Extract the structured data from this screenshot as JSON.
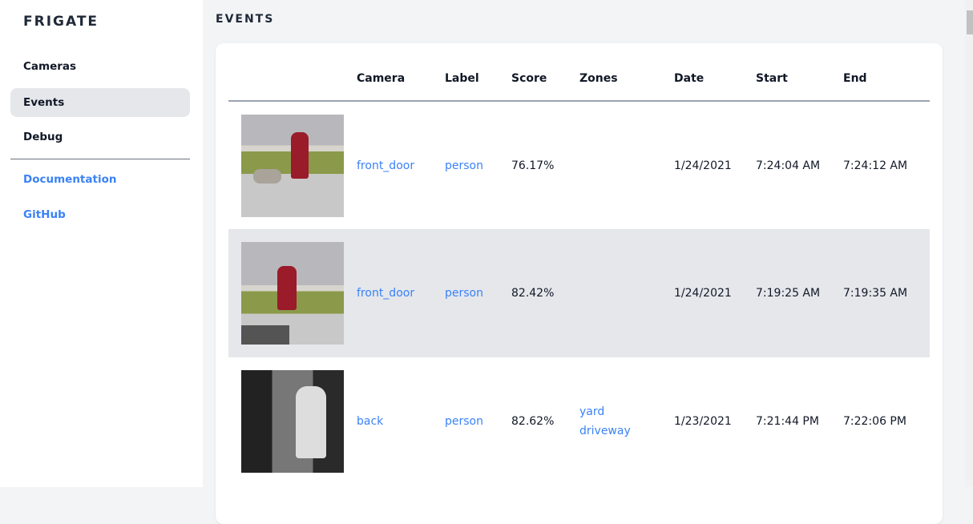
{
  "app": {
    "logo": "FRIGATE"
  },
  "sidebar": {
    "items": [
      {
        "label": "Cameras"
      },
      {
        "label": "Events",
        "active": true
      },
      {
        "label": "Debug"
      }
    ],
    "links": [
      {
        "label": "Documentation"
      },
      {
        "label": "GitHub"
      }
    ]
  },
  "page": {
    "title": "EVENTS"
  },
  "table": {
    "headers": [
      "",
      "Camera",
      "Label",
      "Score",
      "Zones",
      "Date",
      "Start",
      "End"
    ],
    "rows": [
      {
        "camera": "front_door",
        "label": "person",
        "score": "76.17%",
        "zones": [
          "",
          ""
        ],
        "date": "1/24/2021",
        "start": "7:24:04 AM",
        "end": "7:24:12 AM"
      },
      {
        "camera": "front_door",
        "label": "person",
        "score": "82.42%",
        "zones": [
          "",
          ""
        ],
        "date": "1/24/2021",
        "start": "7:19:25 AM",
        "end": "7:19:35 AM"
      },
      {
        "camera": "back",
        "label": "person",
        "score": "82.62%",
        "zones": [
          "yard",
          "driveway"
        ],
        "date": "1/23/2021",
        "start": "7:21:44 PM",
        "end": "7:22:06 PM"
      }
    ]
  },
  "colors": {
    "accent": "#3b82f6",
    "active_bg": "#e5e7eb"
  }
}
